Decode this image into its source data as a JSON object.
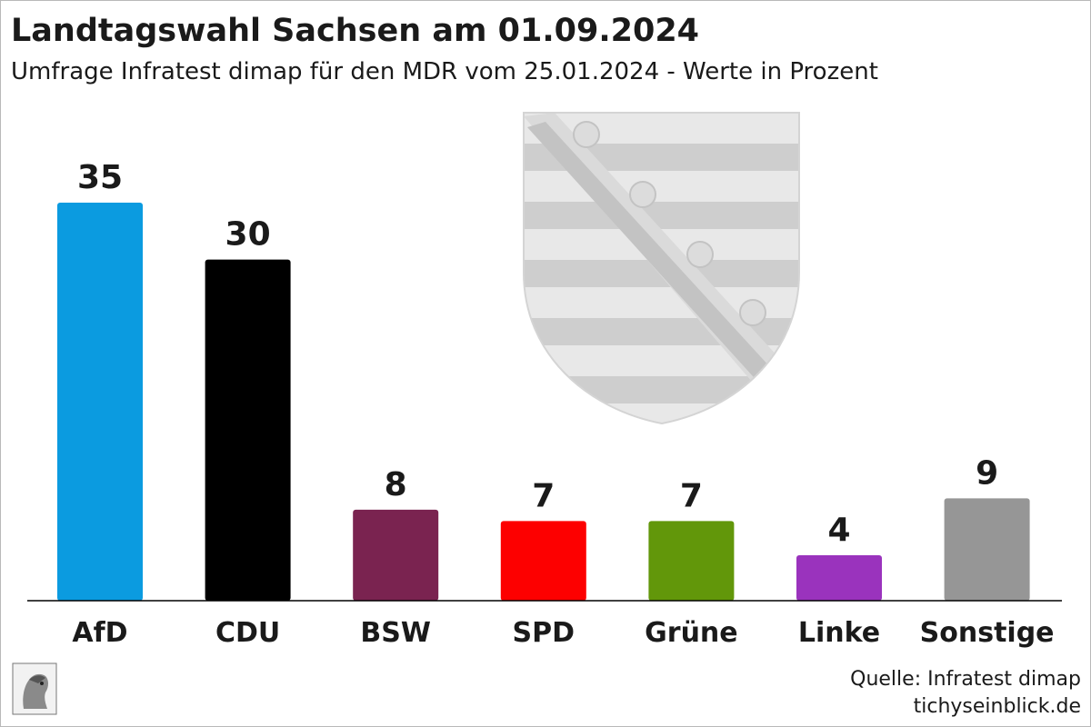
{
  "header": {
    "title": "Landtagswahl Sachsen am 01.09.2024",
    "subtitle": "Umfrage Infratest dimap für den MDR vom 25.01.2024 - Werte in Prozent"
  },
  "footer": {
    "source": "Quelle: Infratest dimap",
    "site": "tichyseinblick.de"
  },
  "chart_data": {
    "type": "bar",
    "title": "Landtagswahl Sachsen am 01.09.2024",
    "subtitle": "Umfrage Infratest dimap für den MDR vom 25.01.2024 - Werte in Prozent",
    "categories": [
      "AfD",
      "CDU",
      "BSW",
      "SPD",
      "Grüne",
      "Linke",
      "Sonstige"
    ],
    "values": [
      35,
      30,
      8,
      7,
      7,
      4,
      9
    ],
    "colors": [
      "#0b9be0",
      "#000000",
      "#7a2350",
      "#fd0000",
      "#62970a",
      "#9a33bd",
      "#969696"
    ],
    "ylim": [
      0,
      35
    ],
    "grid": false,
    "legend": "none"
  }
}
